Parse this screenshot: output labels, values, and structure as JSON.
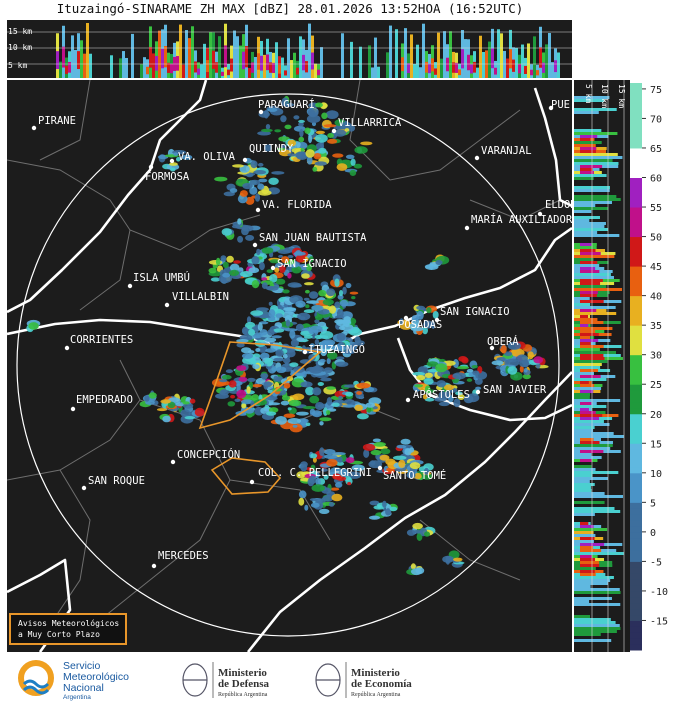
{
  "header": {
    "title": "Ituzaingó-SINARAME ZH MAX [dBZ] 28.01.2026 13:52HOA (16:52UTC)"
  },
  "cross_section": {
    "height_labels": [
      "15 km",
      "10 km",
      "5 km"
    ]
  },
  "side_section": {
    "height_labels": [
      "5 km",
      "10 km",
      "15 km"
    ]
  },
  "map": {
    "cities": [
      "PIRANE",
      "PARAGUARÍ",
      "VILLARRICA",
      "VA. OLIVA",
      "QUIINDY",
      "FORMOSA",
      "VARANJAL",
      "VA. FLORIDA",
      "ELDORADO",
      "MARÍA AUXILIADORA",
      "PUE",
      "SAN JUAN BAUTISTA",
      "SAN IGNACIO",
      "ISLA UMBÚ",
      "VILLALBIN",
      "SAN IGNACIO",
      "POSADAS",
      "CORRIENTES",
      "ITUZAINGÓ",
      "OBERÁ",
      "EMPEDRADO",
      "APÓSTOLES",
      "SAN JAVIER",
      "CONCEPCIÓN",
      "SAN ROQUE",
      "COL. C. PELLEGRINI",
      "SANTO TOMÉ",
      "MERCEDES"
    ]
  },
  "colorbar": {
    "ticks": [
      75,
      70,
      65,
      60,
      55,
      50,
      45,
      40,
      35,
      30,
      25,
      20,
      15,
      10,
      5,
      0,
      -5,
      -10,
      -15
    ],
    "range": [
      -20,
      76
    ]
  },
  "notice": {
    "lines": [
      "Avisos Meteorológicos",
      "a Muy Corto Plazo"
    ]
  },
  "footer": {
    "logos": [
      {
        "lines": [
          "Servicio",
          "Meteorológico",
          "Nacional",
          "Argentina"
        ]
      },
      {
        "lines": [
          "Ministerio",
          "de Defensa",
          "República Argentina"
        ]
      },
      {
        "lines": [
          "Ministerio",
          "de Economía",
          "República Argentina"
        ]
      }
    ]
  }
}
